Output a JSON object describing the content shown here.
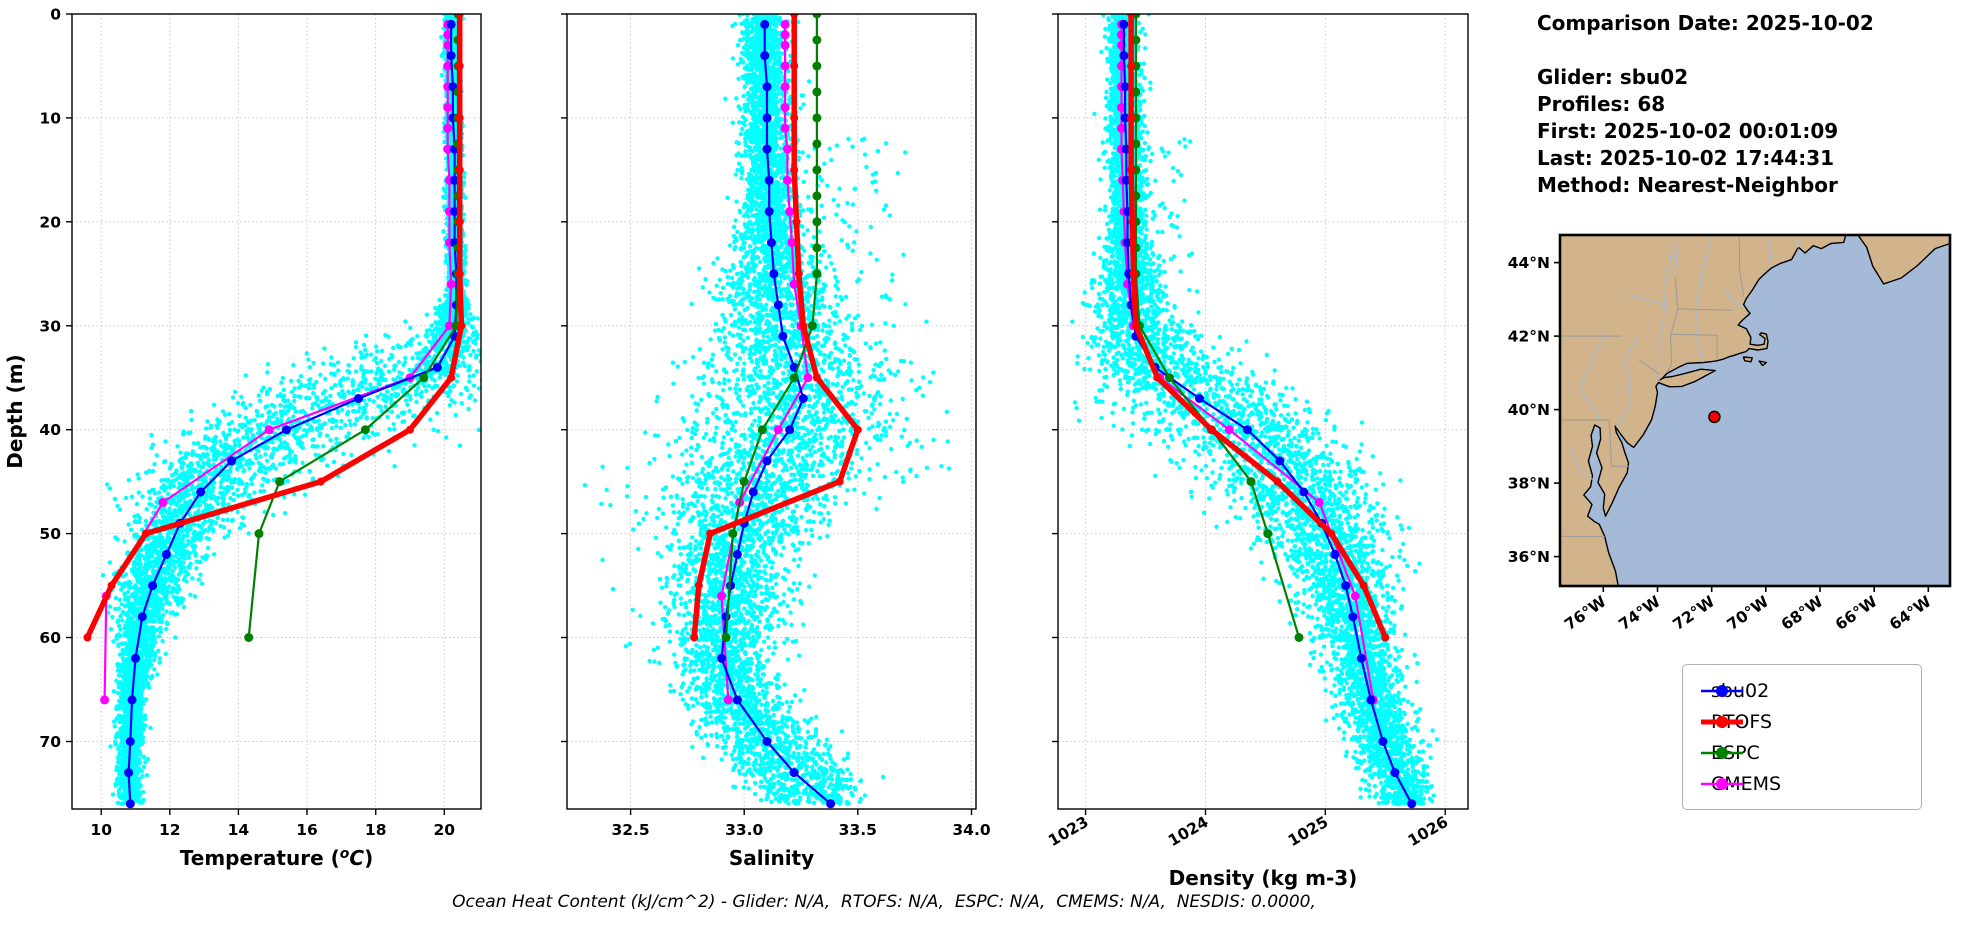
{
  "info": {
    "lines": [
      "Comparison Date: 2025-10-02",
      "",
      "Glider: sbu02",
      "Profiles: 68",
      "First: 2025-10-02 00:01:09",
      "Last: 2025-10-02 17:44:31",
      "Method: Nearest-Neighbor"
    ]
  },
  "footnote": {
    "text": "Ocean Heat Content (kJ/cm^2) - Glider: N/A,  RTOFS: N/A,  ESPC: N/A,  CMEMS: N/A,  NESDIS: 0.0000,"
  },
  "legend": {
    "items": [
      {
        "label": "sbu02",
        "color": "#0000ff",
        "lw": 2.5
      },
      {
        "label": "RTOFS",
        "color": "#ff0000",
        "lw": 5
      },
      {
        "label": "ESPC",
        "color": "#008000",
        "lw": 2.5
      },
      {
        "label": "CMEMS",
        "color": "#ff00ff",
        "lw": 2.5
      }
    ]
  },
  "map": {
    "extent": {
      "lon_min": -77.6,
      "lon_max": -63.2,
      "lat_min": 35.2,
      "lat_max": 44.75
    },
    "xticks": [
      {
        "lon": -76,
        "label": "76°W"
      },
      {
        "lon": -74,
        "label": "74°W"
      },
      {
        "lon": -72,
        "label": "72°W"
      },
      {
        "lon": -70,
        "label": "70°W"
      },
      {
        "lon": -68,
        "label": "68°W"
      },
      {
        "lon": -66,
        "label": "66°W"
      },
      {
        "lon": -64,
        "label": "64°W"
      }
    ],
    "yticks": [
      {
        "lat": 36,
        "label": "36°N"
      },
      {
        "lat": 38,
        "label": "38°N"
      },
      {
        "lat": 40,
        "label": "40°N"
      },
      {
        "lat": 42,
        "label": "42°N"
      },
      {
        "lat": 44,
        "label": "44°N"
      }
    ],
    "marker": {
      "lon": -71.9,
      "lat": 39.8,
      "color": "#ff0000"
    },
    "colors": {
      "land": "#d2b48c",
      "ocean": "#a5bad6",
      "coast": "#000000",
      "river": "#a9bfd6",
      "border": "#9a9a9a"
    }
  },
  "chart_data": [
    {
      "id": "temperature",
      "type": "scatter",
      "title": "",
      "xlabel": "Temperature (oC)",
      "xlabel_parts": {
        "pre": "Temperature (",
        "sup": "o",
        "it": "C",
        "post": ")"
      },
      "ylabel": "Depth (m)",
      "xlim": [
        9.15,
        21.07
      ],
      "ylim": [
        0,
        76.5
      ],
      "xticks": [
        10,
        12,
        14,
        16,
        18,
        20
      ],
      "xtick_labels": [
        "10",
        "12",
        "14",
        "16",
        "18",
        "20"
      ],
      "yticks": [
        0,
        10,
        20,
        30,
        40,
        50,
        60,
        70
      ],
      "rotate_xticklabels": false,
      "grid": true,
      "scatter": {
        "name": "glider raw points",
        "color": "#00ffff",
        "n_profiles": 68,
        "seed": 7,
        "step": 0.8,
        "shift_sd": 2.6,
        "shift_max": 6,
        "surface_sd": 0.07,
        "noise": [
          [
            0,
            0.06
          ],
          [
            25,
            0.09
          ],
          [
            30,
            0.22
          ],
          [
            35,
            0.5
          ],
          [
            40,
            0.75
          ],
          [
            47,
            0.7
          ],
          [
            52,
            0.5
          ],
          [
            58,
            0.3
          ],
          [
            65,
            0.2
          ],
          [
            76,
            0.13
          ]
        ]
      },
      "series": [
        {
          "name": "sbu02",
          "color": "#0000ff",
          "lw": 2.2,
          "marker": 4.5,
          "depths": [
            1,
            4,
            7,
            10,
            13,
            16,
            19,
            22,
            25,
            28,
            31,
            34,
            37,
            40,
            43,
            46,
            49,
            52,
            55,
            58,
            62,
            66,
            70,
            73,
            76
          ],
          "values": [
            20.2,
            20.2,
            20.25,
            20.25,
            20.3,
            20.3,
            20.3,
            20.3,
            20.35,
            20.35,
            20.3,
            19.8,
            17.5,
            15.4,
            13.8,
            12.9,
            12.3,
            11.9,
            11.5,
            11.2,
            11.0,
            10.9,
            10.85,
            10.8,
            10.85
          ]
        },
        {
          "name": "RTOFS",
          "color": "#ff0000",
          "lw": 5.5,
          "marker": 4,
          "depths": [
            0,
            5,
            10,
            15,
            20,
            25,
            30,
            35,
            40,
            45,
            50,
            55,
            60
          ],
          "values": [
            20.45,
            20.45,
            20.45,
            20.45,
            20.45,
            20.45,
            20.5,
            20.2,
            19.0,
            16.4,
            11.3,
            10.3,
            9.6
          ]
        },
        {
          "name": "ESPC",
          "color": "#008000",
          "lw": 2.2,
          "marker": 4.5,
          "depths": [
            0,
            2.5,
            5,
            7.5,
            10,
            12.5,
            15,
            17.5,
            20,
            22.5,
            25,
            30,
            35,
            40,
            45,
            50,
            60
          ],
          "values": [
            20.4,
            20.4,
            20.4,
            20.4,
            20.4,
            20.4,
            20.4,
            20.4,
            20.4,
            20.4,
            20.4,
            20.35,
            19.4,
            17.7,
            15.2,
            14.6,
            14.3
          ]
        },
        {
          "name": "CMEMS",
          "color": "#ff00ff",
          "lw": 2.2,
          "marker": 4.5,
          "depths": [
            1,
            2,
            3,
            5,
            7,
            9,
            11,
            13,
            16,
            19,
            22,
            26,
            30,
            35,
            40,
            47,
            56,
            66
          ],
          "values": [
            20.1,
            20.1,
            20.1,
            20.1,
            20.1,
            20.1,
            20.1,
            20.1,
            20.15,
            20.15,
            20.15,
            20.2,
            20.15,
            19.0,
            14.9,
            11.8,
            10.15,
            10.1
          ]
        }
      ]
    },
    {
      "id": "salinity",
      "type": "scatter",
      "title": "",
      "xlabel": "Salinity",
      "ylabel": "Depth (m)",
      "xlim": [
        32.22,
        34.02
      ],
      "ylim": [
        0,
        76.5
      ],
      "xticks": [
        32.5,
        33.0,
        33.5,
        34.0
      ],
      "xtick_labels": [
        "32.5",
        "33.0",
        "33.5",
        "34.0"
      ],
      "yticks": [
        0,
        10,
        20,
        30,
        40,
        50,
        60,
        70
      ],
      "rotate_xticklabels": false,
      "grid": true,
      "scatter": {
        "name": "glider raw points",
        "color": "#00ffff",
        "n_profiles": 68,
        "seed": 11,
        "step": 0.8,
        "shift_sd": 2.6,
        "shift_max": 6,
        "surface_sd": 0.035,
        "noise": [
          [
            0,
            0.03
          ],
          [
            20,
            0.05
          ],
          [
            28,
            0.12
          ],
          [
            35,
            0.2
          ],
          [
            45,
            0.2
          ],
          [
            55,
            0.12
          ],
          [
            65,
            0.09
          ],
          [
            76,
            0.07
          ]
        ],
        "skew": [
          {
            "d0": 12,
            "d1": 45,
            "prob": 0.08,
            "amp": 0.55
          },
          {
            "d0": 40,
            "d1": 62,
            "prob": 0.05,
            "amp": -0.4
          }
        ]
      },
      "series": [
        {
          "name": "sbu02",
          "color": "#0000ff",
          "lw": 2.2,
          "marker": 4.5,
          "depths": [
            1,
            4,
            7,
            10,
            13,
            16,
            19,
            22,
            25,
            28,
            31,
            34,
            37,
            40,
            43,
            46,
            49,
            52,
            55,
            58,
            62,
            66,
            70,
            73,
            76
          ],
          "values": [
            33.09,
            33.09,
            33.1,
            33.1,
            33.1,
            33.11,
            33.11,
            33.12,
            33.13,
            33.15,
            33.17,
            33.22,
            33.26,
            33.2,
            33.1,
            33.04,
            33.0,
            32.97,
            32.94,
            32.92,
            32.9,
            32.97,
            33.1,
            33.22,
            33.38
          ]
        },
        {
          "name": "RTOFS",
          "color": "#ff0000",
          "lw": 5.5,
          "marker": 4,
          "depths": [
            0,
            5,
            10,
            15,
            20,
            25,
            30,
            35,
            40,
            45,
            50,
            55,
            60
          ],
          "values": [
            33.22,
            33.22,
            33.22,
            33.22,
            33.23,
            33.24,
            33.26,
            33.32,
            33.5,
            33.42,
            32.85,
            32.8,
            32.78
          ]
        },
        {
          "name": "ESPC",
          "color": "#008000",
          "lw": 2.2,
          "marker": 4.5,
          "depths": [
            0,
            2.5,
            5,
            7.5,
            10,
            12.5,
            15,
            17.5,
            20,
            22.5,
            25,
            30,
            35,
            40,
            45,
            50,
            60
          ],
          "values": [
            33.32,
            33.32,
            33.32,
            33.32,
            33.32,
            33.32,
            33.32,
            33.32,
            33.32,
            33.32,
            33.32,
            33.3,
            33.22,
            33.08,
            33.0,
            32.95,
            32.92
          ]
        },
        {
          "name": "CMEMS",
          "color": "#ff00ff",
          "lw": 2.2,
          "marker": 4.5,
          "depths": [
            1,
            2,
            3,
            5,
            7,
            9,
            11,
            13,
            16,
            19,
            22,
            26,
            30,
            35,
            40,
            47,
            56,
            66
          ],
          "values": [
            33.18,
            33.18,
            33.18,
            33.18,
            33.18,
            33.18,
            33.18,
            33.19,
            33.19,
            33.2,
            33.21,
            33.22,
            33.25,
            33.28,
            33.15,
            32.98,
            32.9,
            32.93
          ]
        }
      ]
    },
    {
      "id": "density",
      "type": "scatter",
      "title": "",
      "xlabel": "Density (kg m-3)",
      "ylabel": "Depth (m)",
      "xlim": [
        1022.77,
        1026.19
      ],
      "ylim": [
        0,
        76.5
      ],
      "xticks": [
        1023,
        1024,
        1025,
        1026
      ],
      "xtick_labels": [
        "1023",
        "1024",
        "1025",
        "1026"
      ],
      "yticks": [
        0,
        10,
        20,
        30,
        40,
        50,
        60,
        70
      ],
      "rotate_xticklabels": true,
      "grid": true,
      "scatter": {
        "name": "glider raw points",
        "color": "#00ffff",
        "n_profiles": 68,
        "seed": 13,
        "step": 0.8,
        "shift_sd": 2.6,
        "shift_max": 6,
        "surface_sd": 0.035,
        "noise": [
          [
            0,
            0.05
          ],
          [
            20,
            0.07
          ],
          [
            28,
            0.15
          ],
          [
            35,
            0.3
          ],
          [
            45,
            0.3
          ],
          [
            55,
            0.2
          ],
          [
            65,
            0.13
          ],
          [
            76,
            0.1
          ]
        ],
        "skew": [
          {
            "d0": 12,
            "d1": 40,
            "prob": 0.05,
            "amp": 0.5
          }
        ]
      },
      "series": [
        {
          "name": "sbu02",
          "color": "#0000ff",
          "lw": 2.2,
          "marker": 4.5,
          "depths": [
            1,
            4,
            7,
            10,
            13,
            16,
            19,
            22,
            25,
            28,
            31,
            34,
            37,
            40,
            43,
            46,
            49,
            52,
            55,
            58,
            62,
            66,
            70,
            73,
            76
          ],
          "values": [
            1023.32,
            1023.32,
            1023.33,
            1023.33,
            1023.34,
            1023.34,
            1023.35,
            1023.35,
            1023.36,
            1023.38,
            1023.42,
            1023.58,
            1023.95,
            1024.35,
            1024.62,
            1024.82,
            1024.97,
            1025.08,
            1025.17,
            1025.23,
            1025.3,
            1025.38,
            1025.48,
            1025.58,
            1025.72
          ]
        },
        {
          "name": "RTOFS",
          "color": "#ff0000",
          "lw": 5.5,
          "marker": 4,
          "depths": [
            0,
            5,
            10,
            15,
            20,
            25,
            30,
            35,
            40,
            45,
            50,
            55,
            60
          ],
          "values": [
            1023.38,
            1023.38,
            1023.38,
            1023.38,
            1023.39,
            1023.4,
            1023.42,
            1023.6,
            1024.05,
            1024.6,
            1025.05,
            1025.32,
            1025.5
          ]
        },
        {
          "name": "ESPC",
          "color": "#008000",
          "lw": 2.2,
          "marker": 4.5,
          "depths": [
            0,
            2.5,
            5,
            7.5,
            10,
            12.5,
            15,
            17.5,
            20,
            22.5,
            25,
            30,
            35,
            40,
            45,
            50,
            60
          ],
          "values": [
            1023.42,
            1023.42,
            1023.42,
            1023.42,
            1023.42,
            1023.42,
            1023.42,
            1023.42,
            1023.42,
            1023.42,
            1023.42,
            1023.45,
            1023.7,
            1024.05,
            1024.38,
            1024.52,
            1024.78
          ]
        },
        {
          "name": "CMEMS",
          "color": "#ff00ff",
          "lw": 2.2,
          "marker": 4.5,
          "depths": [
            1,
            2,
            3,
            5,
            7,
            9,
            11,
            13,
            16,
            19,
            22,
            26,
            30,
            35,
            40,
            47,
            56,
            66
          ],
          "values": [
            1023.3,
            1023.3,
            1023.3,
            1023.3,
            1023.3,
            1023.3,
            1023.3,
            1023.3,
            1023.31,
            1023.32,
            1023.33,
            1023.35,
            1023.4,
            1023.62,
            1024.2,
            1024.95,
            1025.25,
            1025.4
          ]
        }
      ]
    }
  ]
}
